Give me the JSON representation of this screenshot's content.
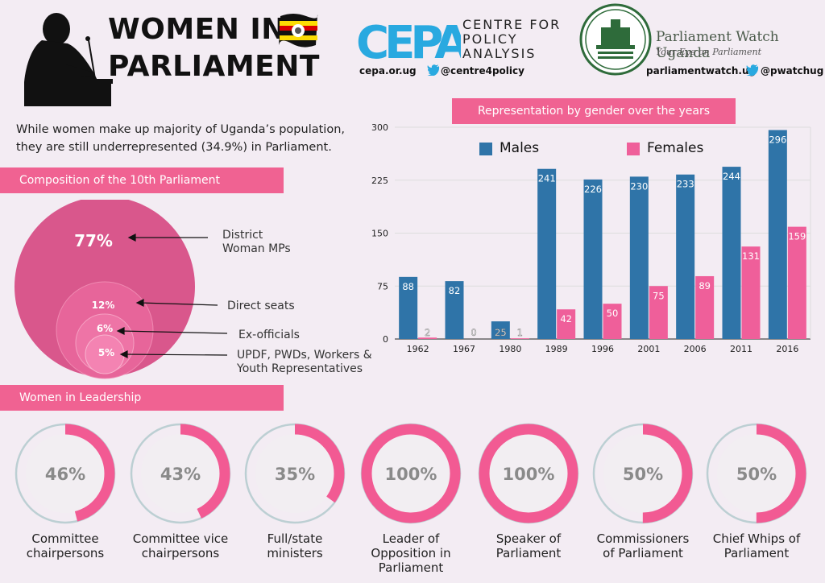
{
  "header": {
    "title_line1": "WOMEN IN",
    "title_line2": "PARLIAMENT",
    "intro_line1": "While women make up majority of Uganda’s population,",
    "intro_line2": "they are still underrepresented (34.9%) in Parliament."
  },
  "cepa": {
    "logo_text": "CEPA",
    "name_line1": "CENTRE FOR",
    "name_line2": "POLICY",
    "name_line3": "ANALYSIS",
    "site": "cepa.or.ug",
    "twitter": "@centre4policy"
  },
  "parliament_watch": {
    "name": "Parliament Watch Uganda",
    "tagline": "Your Eye on Parliament",
    "site": "parliamentwatch.ug",
    "twitter": "@pwatchug"
  },
  "colors": {
    "males": "#2f74a8",
    "females": "#ef5f9a",
    "pink_bar": "#f06292",
    "composition_outer": "#d9578c",
    "ring_track": "#b9cdd1",
    "ring_fill": "#f25a93"
  },
  "composition": {
    "section_title": "Composition of the 10th Parliament",
    "items": [
      {
        "pct": "77%",
        "label_line1": "District",
        "label_line2": "Woman MPs"
      },
      {
        "pct": "12%",
        "label_line1": "Direct seats",
        "label_line2": ""
      },
      {
        "pct": "6%",
        "label_line1": "Ex-officials",
        "label_line2": ""
      },
      {
        "pct": "5%",
        "label_line1": "UPDF, PWDs, Workers &",
        "label_line2": "Youth Representatives"
      }
    ]
  },
  "chart_data": {
    "type": "bar",
    "title": "Representation by gender over the years",
    "categories": [
      "1962",
      "1967",
      "1980",
      "1989",
      "1996",
      "2001",
      "2006",
      "2011",
      "2016"
    ],
    "series": [
      {
        "name": "Males",
        "values": [
          88,
          82,
          25,
          241,
          226,
          230,
          233,
          244,
          296
        ]
      },
      {
        "name": "Females",
        "values": [
          2,
          0,
          1,
          42,
          50,
          75,
          89,
          131,
          159
        ]
      }
    ],
    "yticks": [
      "0",
      "75",
      "150",
      "225",
      "300"
    ],
    "ylim": [
      0,
      300
    ],
    "legend_position": "top",
    "grid": true
  },
  "leadership": {
    "section_title": "Women in Leadership",
    "items": [
      {
        "pct_value": 46,
        "pct": "46%",
        "label_line1": "Committee",
        "label_line2": "chairpersons",
        "label_line3": ""
      },
      {
        "pct_value": 43,
        "pct": "43%",
        "label_line1": "Committee vice",
        "label_line2": "chairpersons",
        "label_line3": ""
      },
      {
        "pct_value": 35,
        "pct": "35%",
        "label_line1": "Full/state",
        "label_line2": "ministers",
        "label_line3": ""
      },
      {
        "pct_value": 100,
        "pct": "100%",
        "label_line1": "Leader of",
        "label_line2": "Opposition in",
        "label_line3": "Parliament"
      },
      {
        "pct_value": 100,
        "pct": "100%",
        "label_line1": "Speaker of",
        "label_line2": "Parliament",
        "label_line3": ""
      },
      {
        "pct_value": 50,
        "pct": "50%",
        "label_line1": "Commissioners",
        "label_line2": "of Parliament",
        "label_line3": ""
      },
      {
        "pct_value": 50,
        "pct": "50%",
        "label_line1": "Chief Whips of",
        "label_line2": "Parliament",
        "label_line3": ""
      }
    ]
  }
}
